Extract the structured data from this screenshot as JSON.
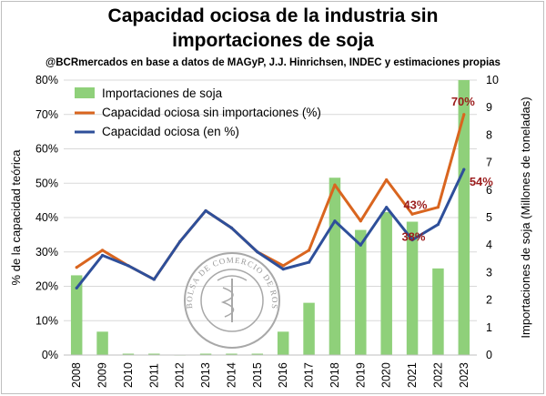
{
  "title_line1": "Capacidad ociosa de la industria sin",
  "title_line2": "importaciones de soja",
  "source": "@BCRmercados en base a datos de MAGyP, J.J. Hinrichsen, INDEC y estimaciones propias",
  "logo_text": "BOLSA DE COMERCIO DE ROSARIO",
  "chart_data": {
    "type": "bar",
    "categories": [
      "2008",
      "2009",
      "2010",
      "2011",
      "2012",
      "2013",
      "2014",
      "2015",
      "2016",
      "2017",
      "2018",
      "2019",
      "2020",
      "2021",
      "2022",
      "2023"
    ],
    "ylabel": "% de la capacidad teórica",
    "y2label": "Importaciones de soja (Millones de toneladas)",
    "ylim": [
      0,
      0.8
    ],
    "y2lim": [
      0,
      10
    ],
    "y_ticks": [
      "0%",
      "10%",
      "20%",
      "30%",
      "40%",
      "50%",
      "60%",
      "70%",
      "80%"
    ],
    "y2_ticks": [
      "0",
      "1",
      "2",
      "3",
      "4",
      "5",
      "6",
      "7",
      "8",
      "9",
      "10"
    ],
    "grid": true,
    "legend_position": "top-left",
    "series": [
      {
        "name": "Importaciones de soja",
        "kind": "bar",
        "axis": "right",
        "color": "#8fd07a",
        "values": [
          2.9,
          0.85,
          0.05,
          0.05,
          0.0,
          0.05,
          0.05,
          0.05,
          0.85,
          1.9,
          6.45,
          4.55,
          5.2,
          4.85,
          3.15,
          10.0
        ]
      },
      {
        "name": "Capacidad ociosa sin importaciones (%)",
        "kind": "line",
        "axis": "left",
        "color": "#d9651f",
        "values": [
          0.255,
          0.305,
          0.26,
          0.22,
          0.33,
          0.42,
          0.37,
          0.3,
          0.26,
          0.305,
          0.495,
          0.39,
          0.51,
          0.41,
          0.43,
          0.7
        ]
      },
      {
        "name": "Capacidad ociosa (en %)",
        "kind": "line",
        "axis": "left",
        "color": "#2e4f9a",
        "values": [
          0.195,
          0.29,
          0.26,
          0.22,
          0.33,
          0.42,
          0.37,
          0.3,
          0.25,
          0.27,
          0.39,
          0.32,
          0.43,
          0.335,
          0.38,
          0.54
        ]
      }
    ],
    "annotations": [
      {
        "text": "70%",
        "series": 1,
        "index": 15
      },
      {
        "text": "43%",
        "series": 1,
        "index": 14
      },
      {
        "text": "38%",
        "series": 2,
        "index": 14
      },
      {
        "text": "54%",
        "series": 2,
        "index": 15
      }
    ]
  }
}
